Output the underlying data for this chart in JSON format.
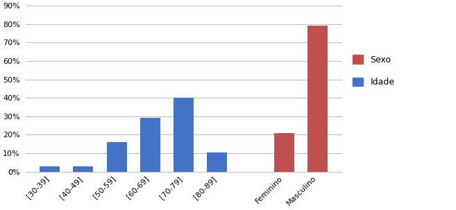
{
  "categories": [
    "[30-39]",
    "[40-49]",
    "[50-59]",
    "[60-69]",
    "[70-79]",
    "[80-89]",
    "",
    "Feminino",
    "Masculino"
  ],
  "values": [
    0.03,
    0.03,
    0.16,
    0.29,
    0.4,
    0.105,
    0,
    0.21,
    0.79
  ],
  "colors": [
    "#4472C4",
    "#4472C4",
    "#4472C4",
    "#4472C4",
    "#4472C4",
    "#4472C4",
    "#FFFFFF",
    "#C0504D",
    "#C0504D"
  ],
  "ylim": [
    0,
    0.9
  ],
  "yticks": [
    0.0,
    0.1,
    0.2,
    0.3,
    0.4,
    0.5,
    0.6,
    0.7,
    0.8,
    0.9
  ],
  "legend_sexo_color": "#C0504D",
  "legend_idade_color": "#4472C4",
  "background_color": "#FFFFFF",
  "grid_color": "#BFBFBF",
  "figure_bg": "#FFFFFF",
  "bar_width": 0.6
}
